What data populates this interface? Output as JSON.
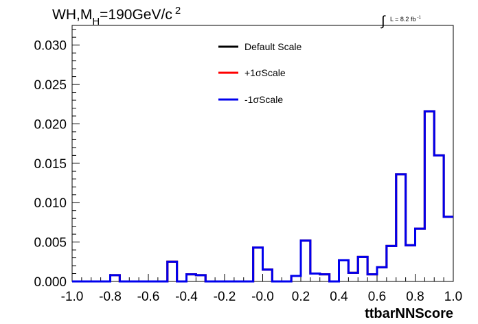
{
  "chart_data": {
    "type": "line",
    "title": "WH,M",
    "title_subscript": "H",
    "title_value": "=190GeV/c",
    "title_superscript": "2",
    "lumi_prefix": "L = 8.2 fb",
    "lumi_superscript": "-1",
    "lumi_integral": "∫",
    "xlabel": "ttbarNNScore",
    "ylabel": "",
    "xlim": [
      -1.0,
      1.0
    ],
    "ylim": [
      0.0,
      0.03
    ],
    "x_tick_labels": [
      "-1.0",
      "-0.8",
      "-0.6",
      "-0.4",
      "-0.2",
      "-0.0",
      "0.2",
      "0.4",
      "0.6",
      "0.8",
      "1.0"
    ],
    "y_tick_labels": [
      "0.000",
      "0.005",
      "0.010",
      "0.015",
      "0.020",
      "0.025",
      "0.030"
    ],
    "bin_edges_start": -1.0,
    "bin_width": 0.05,
    "legend_position": "top-center",
    "grid": false,
    "series": [
      {
        "name": "Default Scale",
        "color": "#000000",
        "values": [
          0,
          0,
          0,
          0,
          0.0008,
          0,
          0,
          0,
          0,
          0,
          0.0025,
          0,
          0.0009,
          0.0008,
          0,
          0,
          0,
          0,
          0,
          0.0043,
          0.0015,
          0,
          0,
          0.0007,
          0.0052,
          0.001,
          0.0009,
          0,
          0.0027,
          0.0011,
          0.0031,
          0.0009,
          0.0018,
          0.0045,
          0.0136,
          0.0046,
          0.0067,
          0.0216,
          0.016,
          0.0082
        ]
      },
      {
        "name": "+1σScale",
        "color": "#ff0000",
        "values": [
          0,
          0,
          0,
          0,
          0.0008,
          0,
          0,
          0,
          0,
          0,
          0.0025,
          0,
          0.0009,
          0.0008,
          0,
          0,
          0,
          0,
          0,
          0.0043,
          0.0015,
          0,
          0,
          0.0007,
          0.0052,
          0.001,
          0.0009,
          0,
          0.0027,
          0.0011,
          0.0031,
          0.0009,
          0.0018,
          0.0045,
          0.0136,
          0.0046,
          0.0067,
          0.0216,
          0.016,
          0.0082
        ]
      },
      {
        "name": "-1σScale",
        "color": "#0000ee",
        "values": [
          0,
          0,
          0,
          0,
          0.0008,
          0,
          0,
          0,
          0,
          0,
          0.0025,
          0,
          0.0009,
          0.0008,
          0,
          0,
          0,
          0,
          0,
          0.0043,
          0.0015,
          0,
          0,
          0.0007,
          0.0052,
          0.001,
          0.0009,
          0,
          0.0027,
          0.0011,
          0.0031,
          0.0009,
          0.0018,
          0.0045,
          0.0136,
          0.0046,
          0.0067,
          0.0216,
          0.016,
          0.0082
        ]
      }
    ]
  }
}
